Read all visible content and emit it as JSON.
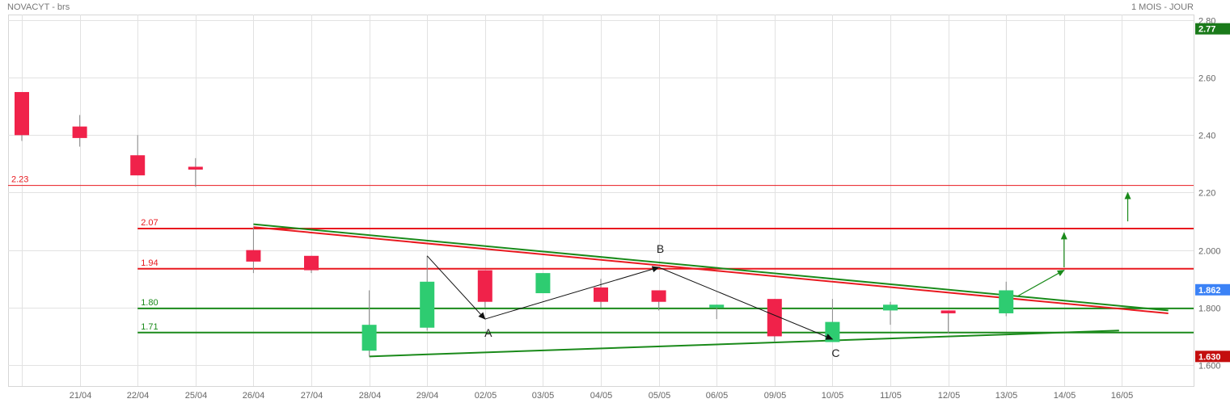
{
  "header": {
    "instrument": "NOVACYT - brs",
    "period": "1 MOIS - JOUR"
  },
  "colors": {
    "up": "#2ecc71",
    "down": "#f0224a",
    "red_line": "#e8191f",
    "green_line": "#1a8a1a",
    "grid": "#e2e2e2",
    "axis_text": "#666666",
    "badge_top": "#1a7a1a",
    "badge_mid": "#3b82f6",
    "badge_bottom": "#c40e0e"
  },
  "chart_data": {
    "type": "candlestick",
    "x_labels": [
      "",
      "21/04",
      "22/04",
      "25/04",
      "26/04",
      "27/04",
      "28/04",
      "29/04",
      "02/05",
      "03/05",
      "04/05",
      "05/05",
      "06/05",
      "09/05",
      "10/05",
      "11/05",
      "12/05",
      "13/05",
      "14/05",
      "16/05"
    ],
    "ylim": [
      1.58,
      2.8
    ],
    "y_ticks": [
      "2.80",
      "2.60",
      "2.40",
      "2.20",
      "2.000",
      "1.800",
      "1.600"
    ],
    "y_tick_values": [
      2.8,
      2.6,
      2.4,
      2.2,
      2.0,
      1.8,
      1.6
    ],
    "candles": [
      {
        "i": 0,
        "open": 2.55,
        "high": 2.55,
        "low": 2.38,
        "close": 2.4
      },
      {
        "i": 1,
        "open": 2.43,
        "high": 2.47,
        "low": 2.36,
        "close": 2.39
      },
      {
        "i": 2,
        "open": 2.33,
        "high": 2.4,
        "low": 2.26,
        "close": 2.26
      },
      {
        "i": 3,
        "open": 2.29,
        "high": 2.32,
        "low": 2.22,
        "close": 2.28
      },
      {
        "i": 4,
        "open": 2.0,
        "high": 2.08,
        "low": 1.92,
        "close": 1.96
      },
      {
        "i": 5,
        "open": 1.98,
        "high": 1.98,
        "low": 1.92,
        "close": 1.93
      },
      {
        "i": 6,
        "open": 1.65,
        "high": 1.86,
        "low": 1.63,
        "close": 1.74
      },
      {
        "i": 7,
        "open": 1.73,
        "high": 1.98,
        "low": 1.72,
        "close": 1.89
      },
      {
        "i": 8,
        "open": 1.93,
        "high": 1.93,
        "low": 1.8,
        "close": 1.82
      },
      {
        "i": 9,
        "open": 1.85,
        "high": 1.92,
        "low": 1.85,
        "close": 1.92
      },
      {
        "i": 10,
        "open": 1.87,
        "high": 1.9,
        "low": 1.8,
        "close": 1.82
      },
      {
        "i": 11,
        "open": 1.86,
        "high": 1.86,
        "low": 1.79,
        "close": 1.82
      },
      {
        "i": 12,
        "open": 1.8,
        "high": 1.81,
        "low": 1.76,
        "close": 1.81
      },
      {
        "i": 13,
        "open": 1.83,
        "high": 1.83,
        "low": 1.68,
        "close": 1.7
      },
      {
        "i": 14,
        "open": 1.68,
        "high": 1.83,
        "low": 1.68,
        "close": 1.75
      },
      {
        "i": 15,
        "open": 1.79,
        "high": 1.82,
        "low": 1.74,
        "close": 1.81
      },
      {
        "i": 16,
        "open": 1.79,
        "high": 1.79,
        "low": 1.71,
        "close": 1.78
      },
      {
        "i": 17,
        "open": 1.78,
        "high": 1.89,
        "low": 1.77,
        "close": 1.86
      }
    ],
    "horizontal_lines": [
      {
        "label": "2.23",
        "value": 2.225,
        "color": "red",
        "width": 1,
        "from_i": -0.9
      },
      {
        "label": "2.07",
        "value": 2.075,
        "color": "red",
        "width": 2,
        "from_i": 2
      },
      {
        "label": "1.94",
        "value": 1.935,
        "color": "red",
        "width": 2,
        "from_i": 2
      },
      {
        "label": "1.80",
        "value": 1.797,
        "color": "green",
        "width": 2,
        "from_i": 2
      },
      {
        "label": "1.71",
        "value": 1.713,
        "color": "green",
        "width": 2,
        "from_i": 2
      }
    ],
    "trend_lines": [
      {
        "color": "red",
        "from": [
          4,
          2.08
        ],
        "to": [
          19.8,
          1.78
        ]
      },
      {
        "color": "green",
        "from": [
          4,
          2.09
        ],
        "to": [
          19.8,
          1.79
        ]
      },
      {
        "color": "green",
        "from": [
          6,
          1.63
        ],
        "to": [
          18.95,
          1.72
        ]
      }
    ],
    "wave_points": [
      {
        "label": "",
        "i": 7,
        "v": 1.98
      },
      {
        "label": "A",
        "i": 8,
        "v": 1.76
      },
      {
        "label": "B",
        "i": 11,
        "v": 1.94
      },
      {
        "label": "C",
        "i": 14,
        "v": 1.69
      }
    ],
    "projections": [
      {
        "from": [
          17.2,
          1.84
        ],
        "to": [
          18.0,
          1.93
        ]
      },
      {
        "from": [
          18.0,
          1.94
        ],
        "to": [
          18.0,
          2.06
        ]
      },
      {
        "from": [
          19.1,
          2.1
        ],
        "to": [
          19.1,
          2.2
        ]
      }
    ],
    "badges": [
      {
        "label": "2.77",
        "value": 2.77,
        "color": "badge_top"
      },
      {
        "label": "1.862",
        "value": 1.862,
        "color": "badge_mid"
      },
      {
        "label": "1.630",
        "value": 1.63,
        "color": "badge_bottom"
      }
    ]
  }
}
